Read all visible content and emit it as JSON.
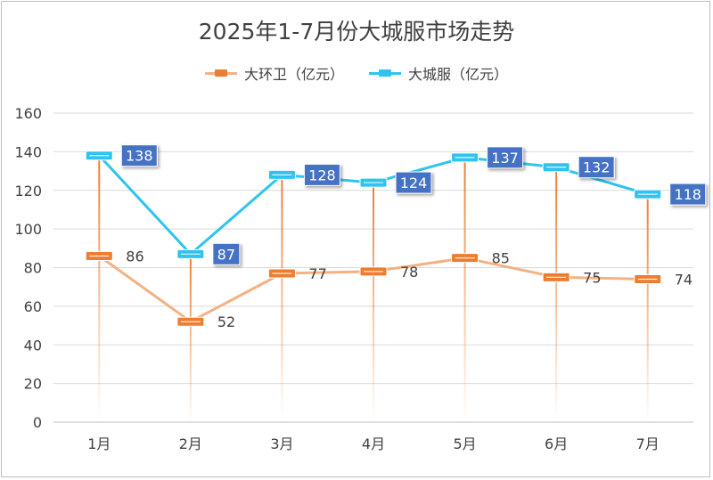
{
  "chart_data": {
    "type": "line",
    "title": "2025年1-7月份大城服市场走势",
    "categories": [
      "1月",
      "2月",
      "3月",
      "4月",
      "5月",
      "6月",
      "7月"
    ],
    "series": [
      {
        "name": "大环卫（亿元）",
        "values": [
          86,
          52,
          77,
          78,
          85,
          75,
          74
        ],
        "color": "#f4b183",
        "marker_color": "#ed7d31",
        "label_style": "plain"
      },
      {
        "name": "大城服（亿元）",
        "values": [
          138,
          87,
          128,
          124,
          137,
          132,
          118
        ],
        "color": "#2ec4ef",
        "marker_color": "#2ec4ef",
        "label_style": "boxed"
      }
    ],
    "ylim": [
      0,
      160
    ],
    "yticks": [
      0,
      20,
      40,
      60,
      80,
      100,
      120,
      140,
      160
    ],
    "grid": true,
    "legend_position": "top-center",
    "label_box_color": "#4472c4"
  }
}
